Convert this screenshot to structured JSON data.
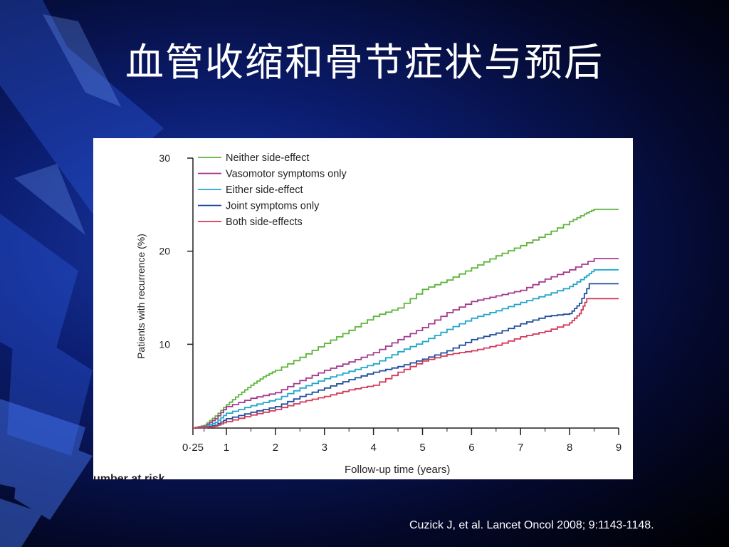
{
  "slide": {
    "title": "血管收缩和骨节症状与预后",
    "citation": "Cuzick J, et al. Lancet Oncol 2008; 9:1143-1148."
  },
  "chart_data": {
    "type": "line",
    "step": true,
    "xlabel": "Follow-up time (years)",
    "ylabel": "Patients with recurrence (%)",
    "xticks": [
      "0·25",
      "1",
      "2",
      "3",
      "4",
      "5",
      "6",
      "7",
      "8",
      "9"
    ],
    "yticks": [
      "10",
      "20",
      "30"
    ],
    "xlim": [
      0.25,
      9
    ],
    "ylim": [
      1,
      30
    ],
    "legend_position": "top-left",
    "cropped_label": "umber at risk",
    "series": [
      {
        "name": "Neither side-effect",
        "color": "#5db53a",
        "x": [
          0.25,
          0.5,
          0.75,
          1,
          1.25,
          1.5,
          1.75,
          2,
          2.5,
          3,
          3.5,
          4,
          4.5,
          5,
          5.5,
          6,
          6.5,
          7,
          7.5,
          8,
          8.3,
          8.5,
          9
        ],
        "y": [
          1,
          1.3,
          2.3,
          3.5,
          4.6,
          5.6,
          6.5,
          7.2,
          8.6,
          10.1,
          11.5,
          13.0,
          13.9,
          15.9,
          16.9,
          18.2,
          19.5,
          20.6,
          21.8,
          23.2,
          24.0,
          24.5,
          24.5
        ]
      },
      {
        "name": "Vasomotor symptoms only",
        "color": "#a43a8e",
        "x": [
          0.25,
          0.5,
          0.75,
          1,
          1.5,
          2,
          2.5,
          3,
          3.5,
          4,
          4.5,
          5,
          5.5,
          6,
          6.5,
          7,
          7.5,
          8,
          8.5,
          9
        ],
        "y": [
          1,
          1.2,
          2.0,
          3.3,
          4.2,
          4.8,
          6.1,
          7.2,
          8.1,
          9.1,
          10.5,
          11.8,
          13.4,
          14.6,
          15.2,
          15.8,
          17.0,
          18.0,
          19.2,
          19.2
        ]
      },
      {
        "name": "Either side-effect",
        "color": "#22a6c9",
        "x": [
          0.25,
          0.5,
          0.75,
          1,
          1.5,
          2,
          2.5,
          3,
          3.5,
          4,
          4.5,
          5,
          5.5,
          6,
          6.5,
          7,
          7.5,
          8,
          8.3,
          8.5,
          9
        ],
        "y": [
          1,
          1.1,
          1.6,
          2.6,
          3.4,
          4.1,
          5.3,
          6.3,
          7.1,
          7.9,
          9.2,
          10.3,
          11.6,
          12.8,
          13.6,
          14.5,
          15.3,
          16.2,
          17.2,
          18.0,
          18.0
        ]
      },
      {
        "name": "Joint symptoms only",
        "color": "#1f4e9a",
        "x": [
          0.25,
          0.5,
          0.75,
          1,
          1.5,
          2,
          2.5,
          3,
          3.5,
          4,
          4.5,
          5,
          5.5,
          6,
          6.5,
          7,
          7.5,
          8,
          8.2,
          8.4,
          9
        ],
        "y": [
          1,
          1.05,
          1.3,
          2.0,
          2.7,
          3.3,
          4.4,
          5.3,
          6.2,
          7.0,
          7.6,
          8.4,
          9.3,
          10.5,
          11.2,
          12.2,
          13.0,
          13.3,
          14.4,
          16.5,
          16.5
        ]
      },
      {
        "name": "Both side-effects",
        "color": "#d23a5a",
        "x": [
          0.25,
          0.5,
          0.75,
          1,
          1.5,
          2,
          2.5,
          3,
          3.5,
          4,
          4.5,
          5,
          5.5,
          6,
          6.5,
          7,
          7.5,
          8,
          8.2,
          8.35,
          9
        ],
        "y": [
          1,
          1.05,
          1.2,
          1.7,
          2.4,
          3.0,
          3.8,
          4.4,
          5.1,
          5.6,
          7.0,
          8.2,
          8.9,
          9.3,
          9.9,
          10.8,
          11.4,
          12.3,
          13.3,
          14.9,
          14.9
        ]
      }
    ]
  }
}
